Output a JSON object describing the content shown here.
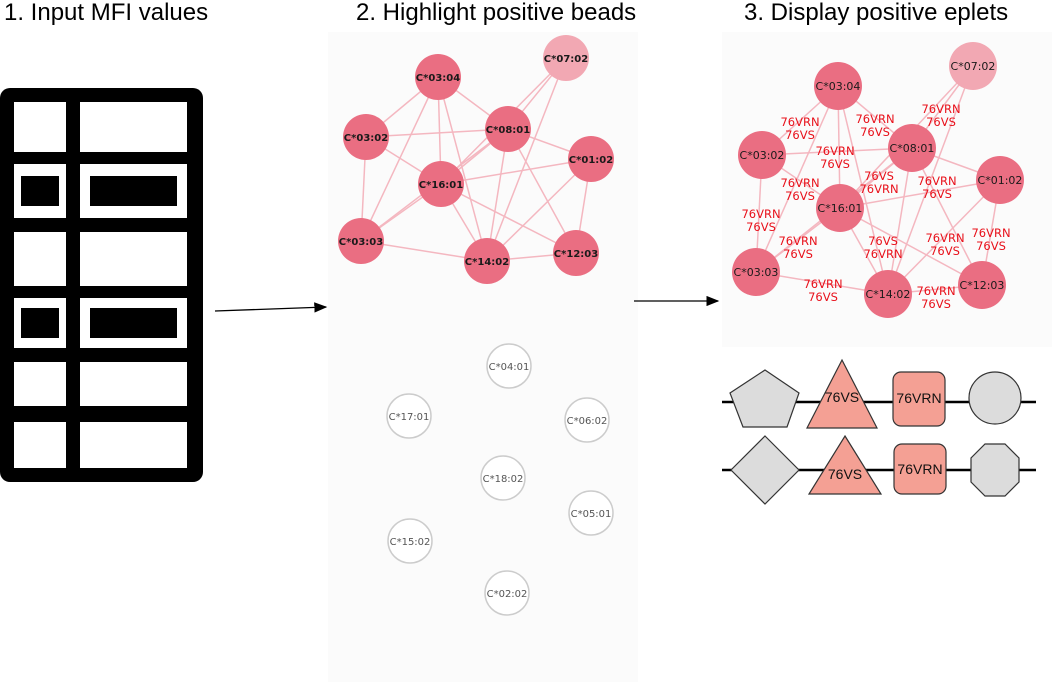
{
  "steps": [
    {
      "title": "1. Input MFI values"
    },
    {
      "title": "2. Highlight positive beads"
    },
    {
      "title": "3. Display positive eplets"
    }
  ],
  "colors": {
    "positive_node": "#ea6e82",
    "positive_node_light": "#f2a8b3",
    "edge": "#f4b7c0",
    "edge_label": "#e8101a",
    "negative_node_stroke": "#cccccc",
    "shape_grey": "#dcdcdc",
    "shape_salmon": "#f4a094"
  },
  "positive_beads": [
    {
      "id": "C*03:04",
      "light": false
    },
    {
      "id": "C*07:02",
      "light": true
    },
    {
      "id": "C*03:02",
      "light": false
    },
    {
      "id": "C*08:01",
      "light": false
    },
    {
      "id": "C*01:02",
      "light": false
    },
    {
      "id": "C*16:01",
      "light": false
    },
    {
      "id": "C*03:03",
      "light": false
    },
    {
      "id": "C*14:02",
      "light": false
    },
    {
      "id": "C*12:03",
      "light": false
    }
  ],
  "negative_beads": [
    "C*04:01",
    "C*17:01",
    "C*06:02",
    "C*18:02",
    "C*05:01",
    "C*15:02",
    "C*02:02"
  ],
  "eplet_labels": [
    {
      "top": "76VRN",
      "bottom": "76VS"
    },
    {
      "top": "76VRN",
      "bottom": "76VS"
    },
    {
      "top": "76VRN",
      "bottom": "76VS"
    },
    {
      "top": "76VRN",
      "bottom": "76VS"
    },
    {
      "top": "76VRN",
      "bottom": "76VS"
    },
    {
      "top": "76VS",
      "bottom": "76VRN"
    },
    {
      "top": "76VRN",
      "bottom": "76VS"
    },
    {
      "top": "76VRN",
      "bottom": "76VS"
    },
    {
      "top": "76VRN",
      "bottom": "76VS"
    },
    {
      "top": "76VS",
      "bottom": "76VRN"
    },
    {
      "top": "76VRN",
      "bottom": "76VS"
    },
    {
      "top": "76VRN",
      "bottom": "76VS"
    },
    {
      "top": "76VRN",
      "bottom": "76VS"
    },
    {
      "top": "76VRN",
      "bottom": "76VS"
    }
  ],
  "haplotypes": [
    {
      "shapes": [
        {
          "kind": "pentagon",
          "label": ""
        },
        {
          "kind": "triangle",
          "label": "76VS"
        },
        {
          "kind": "rounded-square",
          "label": "76VRN"
        },
        {
          "kind": "circle",
          "label": ""
        }
      ]
    },
    {
      "shapes": [
        {
          "kind": "diamond",
          "label": ""
        },
        {
          "kind": "triangle",
          "label": "76VS"
        },
        {
          "kind": "rounded-square",
          "label": "76VRN"
        },
        {
          "kind": "octagon",
          "label": ""
        }
      ]
    }
  ]
}
